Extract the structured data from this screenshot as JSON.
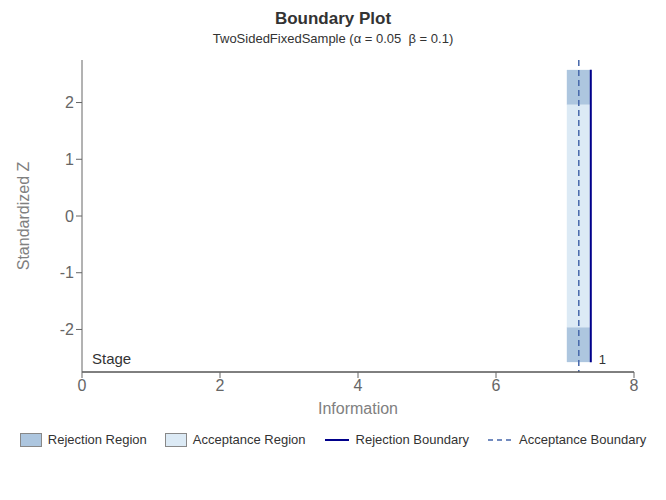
{
  "chart_data": {
    "type": "bar",
    "title": "Boundary Plot",
    "subtitle": "TwoSidedFixedSample (α = 0.05  β = 0.1)",
    "xlabel": "Information",
    "ylabel": "Standardized Z",
    "x": [
      7.2
    ],
    "series": [
      {
        "name": "Rejection Region",
        "type": "bar",
        "color": "#adc6df",
        "ranges": [
          [
            -2.576,
            -1.96
          ],
          [
            1.96,
            2.576
          ]
        ]
      },
      {
        "name": "Acceptance Region",
        "type": "bar",
        "color": "#dceaf5",
        "ranges": [
          [
            -1.96,
            1.96
          ]
        ]
      },
      {
        "name": "Rejection Boundary",
        "type": "line",
        "line_style": "solid",
        "color": "#00008B",
        "ranges": [
          [
            -2.576,
            2.576
          ]
        ]
      },
      {
        "name": "Acceptance Boundary",
        "type": "line",
        "line_style": "dashed",
        "color": "#4466aa",
        "ranges": [
          [
            -2.75,
            2.75
          ]
        ]
      }
    ],
    "xlim": [
      0,
      8
    ],
    "xticks": [
      0,
      2,
      4,
      6,
      8
    ],
    "ylim": [
      -2.75,
      2.75
    ],
    "yticks": [
      -2,
      -1,
      0,
      1,
      2
    ],
    "grid": false,
    "legend": "bottom",
    "annotations": [
      "Stage",
      "1"
    ]
  }
}
